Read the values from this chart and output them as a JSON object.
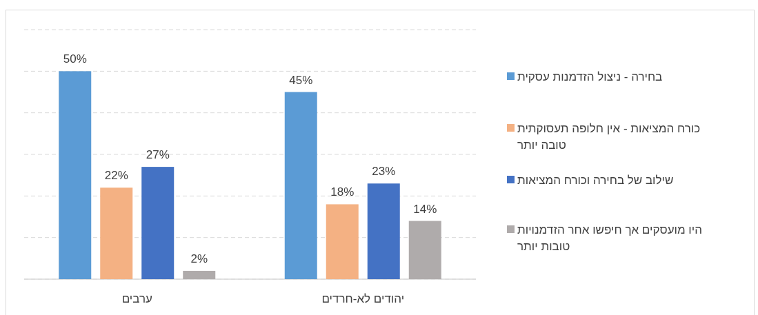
{
  "chart_data": {
    "type": "bar",
    "categories": [
      "ערבים",
      "יהודים לא-חרדים"
    ],
    "series": [
      {
        "name": "בחירה - ניצול הזדמנות עסקית",
        "color": "#5b9bd5",
        "values": [
          50,
          45
        ],
        "value_labels": [
          "50%",
          "45%"
        ]
      },
      {
        "name": "כורח המציאות - אין חלופה תעסוקתית טובה יותר",
        "color": "#f4b183",
        "values": [
          22,
          18
        ],
        "value_labels": [
          "22%",
          "18%"
        ]
      },
      {
        "name": "שילוב של בחירה וכורח המציאות",
        "color": "#4472c4",
        "values": [
          27,
          23
        ],
        "value_labels": [
          "27%",
          "23%"
        ]
      },
      {
        "name": "היו מועסקים אך חיפשו אחר הזדמנויות טובות יותר",
        "color": "#afabab",
        "values": [
          2,
          14
        ],
        "value_labels": [
          "2%",
          "14%"
        ]
      }
    ],
    "ylim": [
      0,
      60
    ],
    "yticks": [
      {
        "value": 0,
        "label": null
      },
      {
        "value": 10,
        "label": null
      },
      {
        "value": 20,
        "label": null
      },
      {
        "value": 30,
        "label": null
      },
      {
        "value": 40,
        "label": null
      },
      {
        "value": 50,
        "label": null
      },
      {
        "value": 60,
        "label": null
      }
    ],
    "tick_labels": "x",
    "grid": "y",
    "legend": "right"
  }
}
